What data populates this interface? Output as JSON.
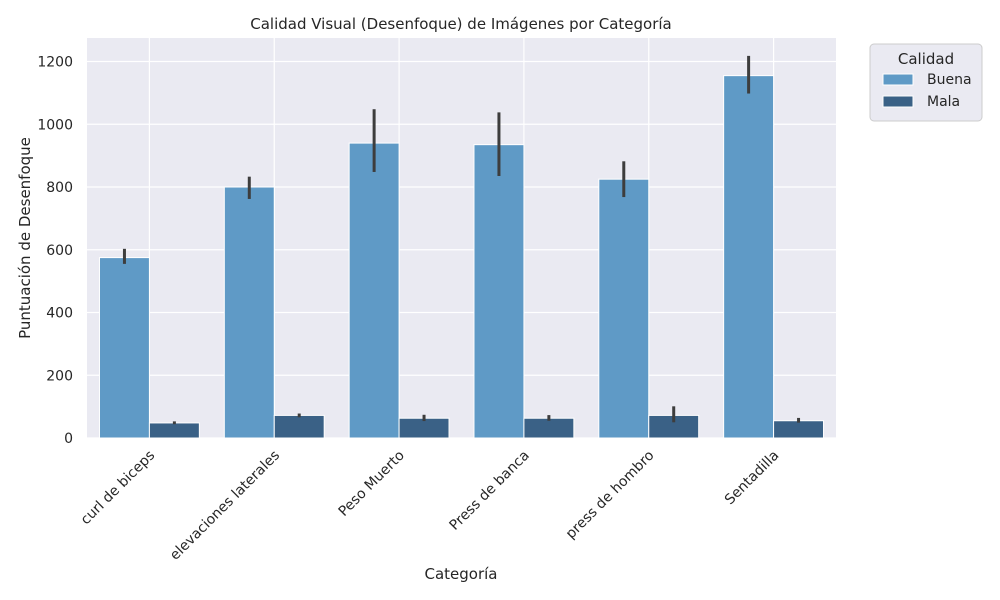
{
  "chart_data": {
    "type": "bar",
    "title": "Calidad Visual (Desenfoque) de Imágenes por Categoría",
    "xlabel": "Categoría",
    "ylabel": "Puntuación de Desenfoque",
    "ylim": [
      0,
      1275
    ],
    "yticks": [
      0,
      200,
      400,
      600,
      800,
      1000,
      1200
    ],
    "grid": true,
    "legend_position": "outside-right",
    "legend_title": "Calidad",
    "categories": [
      "curl de biceps",
      "elevaciones laterales",
      "Peso Muerto",
      "Press de banca",
      "press de hombro",
      "Sentadilla"
    ],
    "series": [
      {
        "name": "Buena",
        "color": "#5f9ac6",
        "values": [
          575,
          800,
          940,
          935,
          825,
          1155
        ],
        "error_low": [
          555,
          762,
          848,
          835,
          768,
          1098
        ],
        "error_high": [
          603,
          833,
          1048,
          1038,
          882,
          1218
        ]
      },
      {
        "name": "Mala",
        "color": "#3a6186",
        "values": [
          48,
          72,
          63,
          63,
          72,
          55
        ],
        "error_low": [
          44,
          66,
          54,
          55,
          50,
          49
        ],
        "error_high": [
          53,
          78,
          74,
          73,
          101,
          64
        ]
      }
    ],
    "colors": {
      "background": "#eaeaf2",
      "grid": "#ffffff",
      "error_bar": "#3d3d3d"
    }
  }
}
